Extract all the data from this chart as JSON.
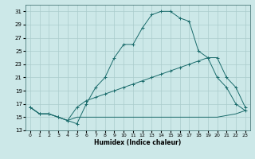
{
  "xlabel": "Humidex (Indice chaleur)",
  "bg_color": "#cce8e8",
  "grid_color": "#aacccc",
  "line_color": "#1a6b6b",
  "xlim": [
    -0.5,
    23.5
  ],
  "ylim": [
    13,
    32
  ],
  "yticks": [
    13,
    15,
    17,
    19,
    21,
    23,
    25,
    27,
    29,
    31
  ],
  "xticks": [
    0,
    1,
    2,
    3,
    4,
    5,
    6,
    7,
    8,
    9,
    10,
    11,
    12,
    13,
    14,
    15,
    16,
    17,
    18,
    19,
    20,
    21,
    22,
    23
  ],
  "curve1_x": [
    0,
    1,
    2,
    3,
    4,
    5,
    6,
    7,
    8,
    9,
    10,
    11,
    12,
    13,
    14,
    15,
    16,
    17,
    18,
    19,
    20,
    21,
    22,
    23
  ],
  "curve1_y": [
    16.5,
    15.5,
    15.5,
    15.0,
    14.5,
    14.0,
    17.0,
    19.5,
    21.0,
    24.0,
    26.0,
    26.0,
    28.5,
    30.5,
    31.0,
    31.0,
    30.0,
    29.5,
    25.0,
    24.0,
    21.0,
    19.5,
    17.0,
    16.0
  ],
  "curve2_x": [
    0,
    1,
    2,
    3,
    4,
    5,
    6,
    7,
    8,
    9,
    10,
    11,
    12,
    13,
    14,
    15,
    16,
    17,
    18,
    19,
    20,
    21,
    22,
    23
  ],
  "curve2_y": [
    16.5,
    15.5,
    15.5,
    15.0,
    14.5,
    16.5,
    17.5,
    18.0,
    18.5,
    19.0,
    19.5,
    20.0,
    20.5,
    21.0,
    21.5,
    22.0,
    22.5,
    23.0,
    23.5,
    24.0,
    24.0,
    21.0,
    19.5,
    16.5
  ],
  "curve3_x": [
    0,
    1,
    2,
    3,
    4,
    5,
    9,
    14,
    19,
    20,
    22,
    23
  ],
  "curve3_y": [
    16.5,
    15.5,
    15.5,
    15.0,
    14.5,
    15.0,
    15.0,
    15.0,
    15.0,
    15.0,
    15.5,
    16.0
  ]
}
